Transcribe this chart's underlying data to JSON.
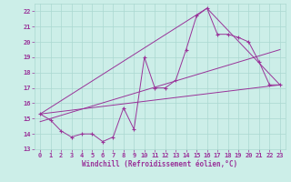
{
  "xlabel": "Windchill (Refroidissement éolien,°C)",
  "bg_color": "#cceee8",
  "grid_color": "#aad8d0",
  "line_color": "#993399",
  "xlim": [
    -0.5,
    23.5
  ],
  "ylim": [
    13,
    22.5
  ],
  "yticks": [
    13,
    14,
    15,
    16,
    17,
    18,
    19,
    20,
    21,
    22
  ],
  "xticks": [
    0,
    1,
    2,
    3,
    4,
    5,
    6,
    7,
    8,
    9,
    10,
    11,
    12,
    13,
    14,
    15,
    16,
    17,
    18,
    19,
    20,
    21,
    22,
    23
  ],
  "main_x": [
    0,
    1,
    2,
    3,
    4,
    5,
    6,
    7,
    8,
    9,
    10,
    11,
    12,
    13,
    14,
    15,
    16,
    17,
    18,
    19,
    20,
    21,
    22,
    23
  ],
  "main_y": [
    15.3,
    14.9,
    14.2,
    13.8,
    14.0,
    14.0,
    13.5,
    13.8,
    15.7,
    14.3,
    19.0,
    17.0,
    17.0,
    17.5,
    19.5,
    21.7,
    22.2,
    20.5,
    20.5,
    20.3,
    20.0,
    18.7,
    17.2,
    17.2
  ],
  "line1_x": [
    0,
    23
  ],
  "line1_y": [
    15.3,
    17.2
  ],
  "line2_x": [
    0,
    16,
    23
  ],
  "line2_y": [
    15.3,
    22.2,
    17.2
  ],
  "line3_x": [
    0,
    23
  ],
  "line3_y": [
    14.8,
    19.5
  ]
}
